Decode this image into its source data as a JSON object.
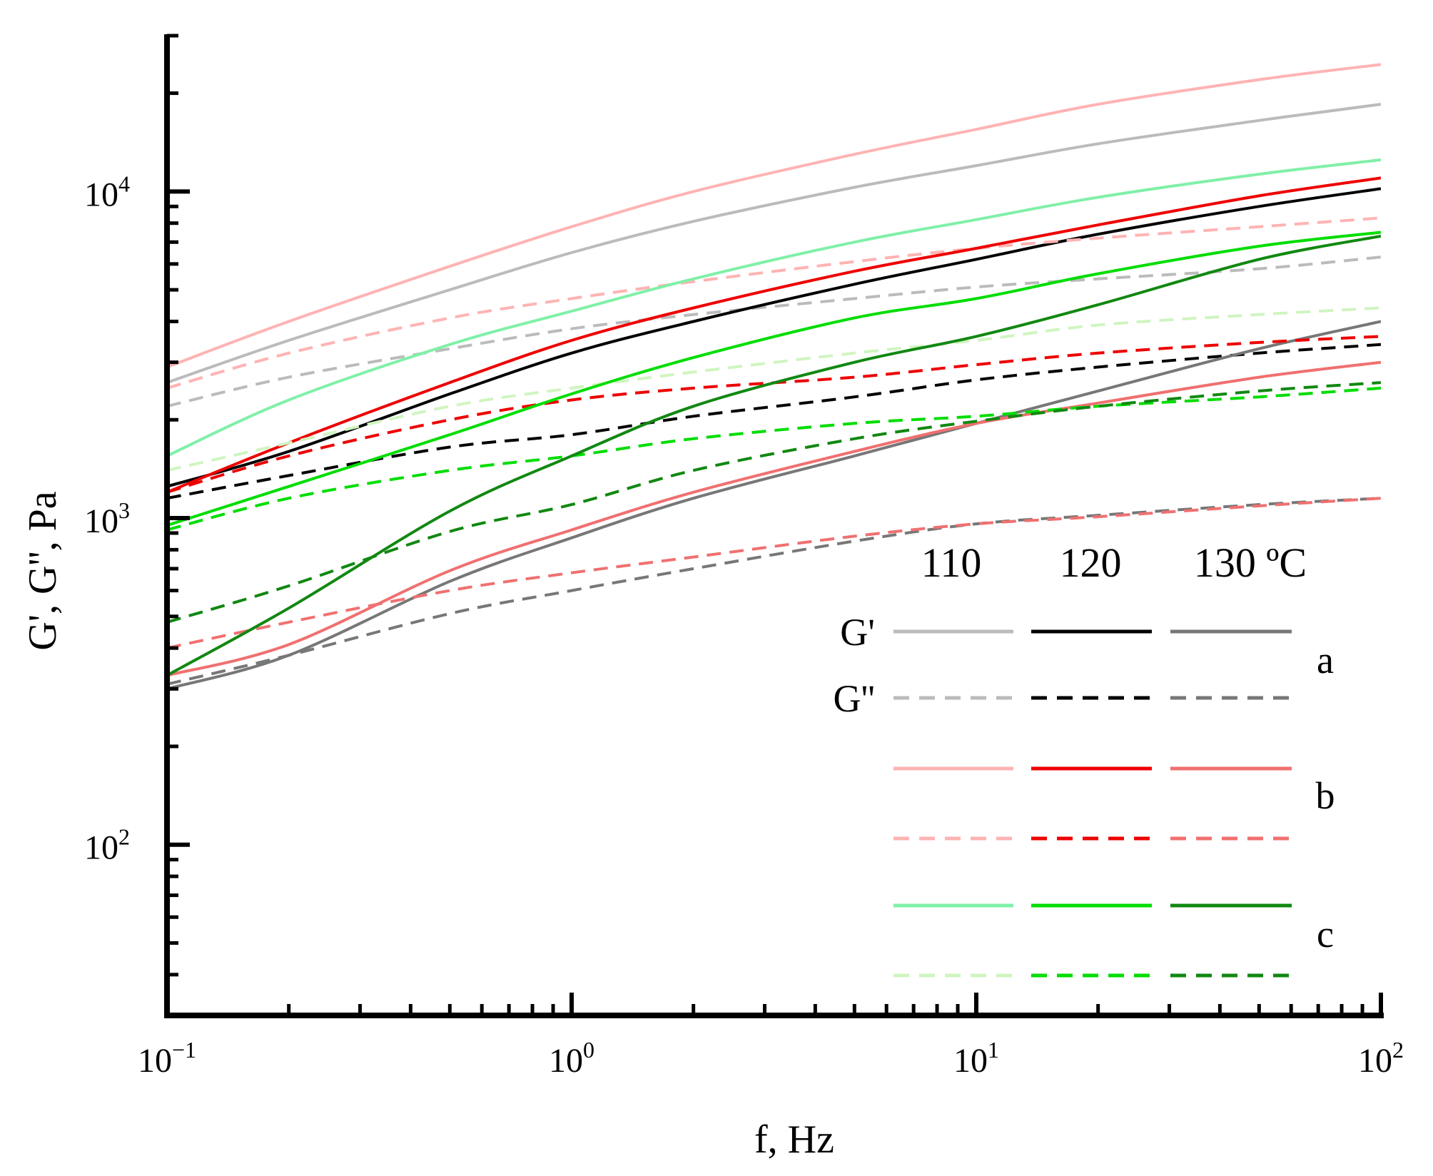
{
  "chart_data": {
    "type": "line",
    "xscale": "log",
    "yscale": "log",
    "xlabel": "f, Hz",
    "ylabel": "G', G'', Pa",
    "xlim": [
      0.1,
      100
    ],
    "ylim": [
      30,
      30000
    ],
    "xticks": [
      {
        "base": "10",
        "exp": "−1"
      },
      {
        "base": "10",
        "exp": "0"
      },
      {
        "base": "10",
        "exp": "1"
      },
      {
        "base": "10",
        "exp": "2"
      }
    ],
    "yticks": [
      {
        "value": 100,
        "base": "10",
        "exp": "2"
      },
      {
        "value": 1000,
        "base": "10",
        "exp": "3"
      },
      {
        "value": 10000,
        "base": "10",
        "exp": "4"
      }
    ],
    "legend": {
      "placement": "bottom-right",
      "temperatures": [
        "110",
        "120",
        "130 ºC"
      ],
      "rows": [
        {
          "label": "G'",
          "style": "solid",
          "colors": [
            "#bbbbbb",
            "#000000",
            "#777777"
          ]
        },
        {
          "label": "G''",
          "style": "dashed",
          "colors": [
            "#bbbbbb",
            "#000000",
            "#777777"
          ]
        },
        {
          "label": "",
          "style": "solid",
          "colors": [
            "#ffb3b3",
            "#ee0000",
            "#f07070"
          ]
        },
        {
          "label": "",
          "style": "dashed",
          "colors": [
            "#ffb3b3",
            "#ee0000",
            "#f07070"
          ]
        },
        {
          "label": "",
          "style": "solid",
          "colors": [
            "#80f0a8",
            "#00dd00",
            "#118811"
          ]
        },
        {
          "label": "",
          "style": "dashed",
          "colors": [
            "#d0f5c0",
            "#00dd00",
            "#118811"
          ]
        }
      ],
      "group_labels": [
        "a",
        "b",
        "c"
      ]
    },
    "x": [
      0.1,
      0.2,
      0.5,
      1,
      2,
      5,
      10,
      20,
      50,
      100
    ],
    "series": [
      {
        "name": "a G' 110",
        "group": "a",
        "temp": "110",
        "modulus": "G'",
        "color": "#bbbbbb",
        "dash": false,
        "values": [
          2600,
          3500,
          5000,
          6500,
          8100,
          10300,
          12000,
          14000,
          16500,
          18500
        ]
      },
      {
        "name": "a G'' 110",
        "group": "a",
        "temp": "110",
        "modulus": "G''",
        "color": "#bbbbbb",
        "dash": true,
        "values": [
          2200,
          2700,
          3300,
          3800,
          4200,
          4700,
          5100,
          5400,
          5800,
          6300
        ]
      },
      {
        "name": "a G' 120",
        "group": "a",
        "temp": "120",
        "modulus": "G'",
        "color": "#000000",
        "dash": false,
        "values": [
          1250,
          1600,
          2400,
          3200,
          4000,
          5200,
          6200,
          7400,
          9000,
          10200
        ]
      },
      {
        "name": "a G'' 120",
        "group": "a",
        "temp": "120",
        "modulus": "G''",
        "color": "#000000",
        "dash": true,
        "values": [
          1150,
          1350,
          1650,
          1800,
          2050,
          2350,
          2650,
          2900,
          3200,
          3400
        ]
      },
      {
        "name": "a G' 130",
        "group": "a",
        "temp": "130",
        "modulus": "G'",
        "color": "#777777",
        "dash": false,
        "values": [
          300,
          380,
          640,
          870,
          1150,
          1550,
          1950,
          2450,
          3300,
          4000
        ]
      },
      {
        "name": "a G'' 130",
        "group": "a",
        "temp": "130",
        "modulus": "G''",
        "color": "#777777",
        "dash": true,
        "values": [
          310,
          380,
          510,
          600,
          700,
          850,
          960,
          1020,
          1100,
          1150
        ]
      },
      {
        "name": "b G' 110",
        "group": "b",
        "temp": "110",
        "modulus": "G'",
        "color": "#ffb3b3",
        "dash": false,
        "values": [
          2900,
          4000,
          5900,
          7800,
          10000,
          13000,
          15500,
          18500,
          22000,
          24500
        ]
      },
      {
        "name": "b G'' 110",
        "group": "b",
        "temp": "110",
        "modulus": "G''",
        "color": "#ffb3b3",
        "dash": true,
        "values": [
          2500,
          3200,
          4100,
          4700,
          5300,
          6100,
          6700,
          7200,
          7800,
          8300
        ]
      },
      {
        "name": "b G' 120",
        "group": "b",
        "temp": "120",
        "modulus": "G'",
        "color": "#ee0000",
        "dash": false,
        "values": [
          1200,
          1700,
          2600,
          3500,
          4400,
          5700,
          6700,
          7900,
          9700,
          11000
        ]
      },
      {
        "name": "b G'' 120",
        "group": "b",
        "temp": "120",
        "modulus": "G''",
        "color": "#ee0000",
        "dash": true,
        "values": [
          1200,
          1550,
          2000,
          2300,
          2500,
          2700,
          2950,
          3200,
          3450,
          3600
        ]
      },
      {
        "name": "b G' 130",
        "group": "b",
        "temp": "130",
        "modulus": "G'",
        "color": "#f07070",
        "dash": false,
        "values": [
          330,
          410,
          690,
          920,
          1200,
          1600,
          1950,
          2250,
          2700,
          3000
        ]
      },
      {
        "name": "b G'' 130",
        "group": "b",
        "temp": "130",
        "modulus": "G''",
        "color": "#f07070",
        "dash": true,
        "values": [
          400,
          480,
          600,
          680,
          760,
          880,
          960,
          1010,
          1090,
          1150
        ]
      },
      {
        "name": "c G' 110",
        "group": "c",
        "temp": "110",
        "modulus": "G'",
        "color": "#80f0a8",
        "dash": false,
        "values": [
          1550,
          2300,
          3400,
          4300,
          5400,
          7000,
          8200,
          9600,
          11300,
          12500
        ]
      },
      {
        "name": "c G'' 110",
        "group": "c",
        "temp": "110",
        "modulus": "G''",
        "color": "#d0f5c0",
        "dash": true,
        "values": [
          1400,
          1700,
          2200,
          2500,
          2800,
          3200,
          3500,
          3900,
          4200,
          4400
        ]
      },
      {
        "name": "c G' 120",
        "group": "c",
        "temp": "120",
        "modulus": "G'",
        "color": "#00dd00",
        "dash": false,
        "values": [
          950,
          1250,
          1800,
          2400,
          3100,
          4100,
          4700,
          5600,
          6800,
          7500
        ]
      },
      {
        "name": "c G'' 120",
        "group": "c",
        "temp": "120",
        "modulus": "G''",
        "color": "#00dd00",
        "dash": true,
        "values": [
          920,
          1150,
          1400,
          1550,
          1750,
          1950,
          2050,
          2200,
          2350,
          2500
        ]
      },
      {
        "name": "c G' 130",
        "group": "c",
        "temp": "130",
        "modulus": "G'",
        "color": "#118811",
        "dash": false,
        "values": [
          330,
          530,
          1050,
          1550,
          2200,
          3000,
          3600,
          4500,
          6200,
          7300
        ]
      },
      {
        "name": "c G'' 130",
        "group": "c",
        "temp": "130",
        "modulus": "G''",
        "color": "#118811",
        "dash": true,
        "values": [
          480,
          620,
          910,
          1100,
          1400,
          1750,
          1980,
          2200,
          2450,
          2600
        ]
      }
    ]
  }
}
